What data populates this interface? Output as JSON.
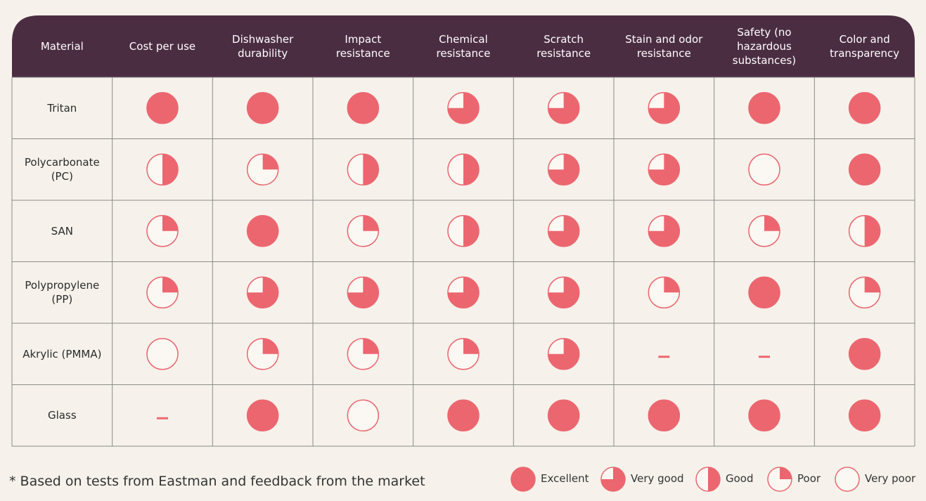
{
  "table": {
    "columns": [
      "Material",
      "Cost per use",
      "Dishwasher durability",
      "Impact resistance",
      "Chemical resistance",
      "Scratch resistance",
      "Stain and odor resistance",
      "Safety (no hazardous substances)",
      "Color and transparency"
    ],
    "rows": [
      {
        "material": "Tritan",
        "ratings": [
          "Excellent",
          "Excellent",
          "Excellent",
          "Very good",
          "Very good",
          "Very good",
          "Excellent",
          "Excellent"
        ]
      },
      {
        "material": "Polycarbonate (PC)",
        "ratings": [
          "Good",
          "Poor",
          "Good",
          "Good",
          "Very good",
          "Very good",
          "Very poor",
          "Excellent"
        ]
      },
      {
        "material": "SAN",
        "ratings": [
          "Poor",
          "Excellent",
          "Poor",
          "Good",
          "Very good",
          "Very good",
          "Poor",
          "Good"
        ]
      },
      {
        "material": "Polypropylene (PP)",
        "ratings": [
          "Poor",
          "Very good",
          "Very good",
          "Very good",
          "Very good",
          "Poor",
          "Excellent",
          "Poor"
        ]
      },
      {
        "material": "Akrylic (PMMA)",
        "ratings": [
          "Very poor",
          "Poor",
          "Poor",
          "Poor",
          "Very good",
          null,
          null,
          "Excellent"
        ]
      },
      {
        "material": "Glass",
        "ratings": [
          null,
          "Excellent",
          "Very poor",
          "Excellent",
          "Excellent",
          "Excellent",
          "Excellent",
          "Excellent"
        ]
      }
    ]
  },
  "footnote": "* Based on tests from Eastman and feedback from the market",
  "legend": [
    "Excellent",
    "Very good",
    "Good",
    "Poor",
    "Very poor"
  ]
}
